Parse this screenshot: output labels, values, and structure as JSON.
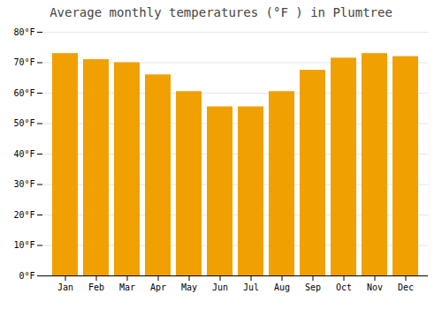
{
  "chart_data": {
    "type": "bar",
    "title": "Average monthly temperatures (°F ) in Plumtree",
    "categories": [
      "Jan",
      "Feb",
      "Mar",
      "Apr",
      "May",
      "Jun",
      "Jul",
      "Aug",
      "Sep",
      "Oct",
      "Nov",
      "Dec"
    ],
    "values": [
      73,
      71,
      70,
      66,
      60.5,
      55.5,
      55.5,
      60.5,
      67.5,
      71.5,
      73,
      72
    ],
    "color": "#F0A000",
    "ylim": [
      0,
      80
    ],
    "yticks": [
      {
        "value": 0,
        "label": "0°F"
      },
      {
        "value": 10,
        "label": "10°F"
      },
      {
        "value": 20,
        "label": "20°F"
      },
      {
        "value": 30,
        "label": "30°F"
      },
      {
        "value": 40,
        "label": "40°F"
      },
      {
        "value": 50,
        "label": "50°F"
      },
      {
        "value": 60,
        "label": "60°F"
      },
      {
        "value": 70,
        "label": "70°F"
      },
      {
        "value": 80,
        "label": "80°F"
      }
    ],
    "grid": true
  }
}
